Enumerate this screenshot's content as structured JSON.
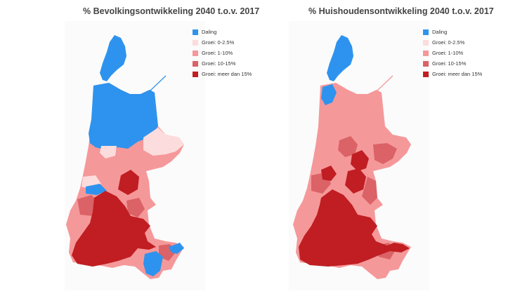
{
  "colors": {
    "decline": "#2e93ee",
    "growth_0_2_5": "#fcdcdc",
    "growth_1_10": "#f5989a",
    "growth_10_15": "#db6266",
    "growth_15_plus": "#c01e22"
  },
  "legend": [
    {
      "label": "Daling",
      "color": "#2e93ee"
    },
    {
      "label": "Groei: 0-2.5%",
      "color": "#fcdcdc"
    },
    {
      "label": "Groei: 1-10%",
      "color": "#f5989a"
    },
    {
      "label": "Groei: 10-15%",
      "color": "#db6266"
    },
    {
      "label": "Groei: meer dan 15%",
      "color": "#c01e22"
    }
  ],
  "maps": [
    {
      "title": "% Bevolkingsontwikkeling 2040 t.o.v. 2017"
    },
    {
      "title": "% Huishoudensontwikkeling 2040 t.o.v. 2017"
    }
  ]
}
